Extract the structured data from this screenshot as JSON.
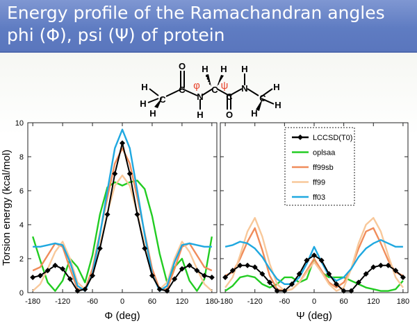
{
  "title_line1": "Energy profile of the Ramachandran angles",
  "title_line2": "phi (Φ), psi (Ψ) of protein",
  "molecule": {
    "atoms": [
      "H",
      "H",
      "H",
      "C",
      "O",
      "C",
      "N",
      "H",
      "H",
      "H",
      "C",
      "C",
      "O",
      "N",
      "H",
      "H",
      "H",
      "H",
      "C"
    ],
    "phi_symbol": "φ",
    "psi_symbol": "ψ"
  },
  "chart_data": [
    {
      "type": "line",
      "panel": "phi",
      "xlabel": "Φ (deg)",
      "ylabel": "Torsion energy (kcal/mol)",
      "xlim": [
        -190,
        190
      ],
      "ylim": [
        0,
        10
      ],
      "x_ticks": [
        -180,
        -120,
        -60,
        0,
        60,
        120,
        180
      ],
      "y_ticks": [
        0,
        2,
        4,
        6,
        8,
        10
      ],
      "series": [
        {
          "name": "oplsaa",
          "color": "#22cc22",
          "marker": "none",
          "x": [
            -180,
            -165,
            -150,
            -135,
            -120,
            -105,
            -90,
            -75,
            -60,
            -45,
            -30,
            -15,
            0,
            15,
            30,
            45,
            60,
            75,
            90,
            105,
            120,
            135,
            150,
            165,
            180
          ],
          "y": [
            3.3,
            1.9,
            0.6,
            0.1,
            0.7,
            2.0,
            1.5,
            0.6,
            2.2,
            4.6,
            6.2,
            6.5,
            6.3,
            6.5,
            6.6,
            6.1,
            4.5,
            2.3,
            0.6,
            1.5,
            2.0,
            0.7,
            0.1,
            0.8,
            3.3
          ]
        },
        {
          "name": "ff99sb",
          "color": "#f08c5a",
          "marker": "none",
          "x": [
            -180,
            -165,
            -150,
            -135,
            -120,
            -105,
            -90,
            -75,
            -60,
            -45,
            -30,
            -15,
            0,
            15,
            30,
            45,
            60,
            75,
            90,
            105,
            120,
            135,
            150,
            165,
            180
          ],
          "y": [
            1.3,
            1.5,
            2.2,
            2.9,
            2.7,
            1.4,
            0.2,
            0.2,
            1.4,
            3.5,
            5.6,
            7.6,
            8.5,
            7.6,
            5.6,
            3.5,
            1.4,
            0.2,
            0.2,
            1.4,
            2.7,
            2.9,
            2.2,
            1.5,
            1.3
          ]
        },
        {
          "name": "ff99",
          "color": "#f8c89a",
          "marker": "none",
          "x": [
            -180,
            -165,
            -150,
            -135,
            -120,
            -105,
            -90,
            -75,
            -60,
            -45,
            -30,
            -15,
            0,
            15,
            30,
            45,
            60,
            75,
            90,
            105,
            120,
            135,
            150,
            165,
            180
          ],
          "y": [
            0.1,
            0.5,
            1.4,
            2.4,
            3.0,
            2.0,
            0.6,
            0.2,
            1.0,
            2.8,
            4.7,
            6.3,
            6.9,
            6.3,
            4.7,
            2.8,
            1.0,
            0.2,
            0.6,
            2.0,
            3.0,
            2.4,
            1.4,
            0.5,
            0.1
          ]
        },
        {
          "name": "ff03",
          "color": "#1fa8e0",
          "marker": "none",
          "x": [
            -180,
            -165,
            -150,
            -135,
            -120,
            -105,
            -90,
            -75,
            -60,
            -45,
            -30,
            -15,
            0,
            15,
            30,
            45,
            60,
            75,
            90,
            105,
            120,
            135,
            150,
            165,
            180
          ],
          "y": [
            2.7,
            2.7,
            2.8,
            2.9,
            2.8,
            1.8,
            0.4,
            0.1,
            1.1,
            3.4,
            6.0,
            8.5,
            9.6,
            8.5,
            6.0,
            3.4,
            1.1,
            0.1,
            0.4,
            1.8,
            2.8,
            2.9,
            2.8,
            2.7,
            2.7
          ]
        },
        {
          "name": "LCCSD(T0)",
          "color": "#000000",
          "marker": "diamond",
          "x": [
            -180,
            -165,
            -150,
            -135,
            -120,
            -105,
            -90,
            -75,
            -60,
            -45,
            -30,
            -15,
            0,
            15,
            30,
            45,
            60,
            75,
            90,
            105,
            120,
            135,
            150,
            165,
            180
          ],
          "y": [
            0.9,
            1.0,
            1.3,
            1.6,
            1.4,
            0.8,
            0.1,
            0.2,
            1.0,
            2.6,
            4.6,
            7.0,
            8.8,
            7.0,
            4.6,
            2.6,
            1.0,
            0.2,
            0.1,
            0.8,
            1.4,
            1.6,
            1.3,
            1.0,
            0.9
          ]
        }
      ]
    },
    {
      "type": "line",
      "panel": "psi",
      "xlabel": "Ψ (deg)",
      "xlim": [
        -190,
        190
      ],
      "ylim": [
        0,
        10
      ],
      "x_ticks": [
        -180,
        -120,
        -60,
        0,
        60,
        120,
        180
      ],
      "legend": "top-right",
      "series": [
        {
          "name": "oplsaa",
          "color": "#22cc22",
          "marker": "none",
          "x": [
            -180,
            -165,
            -150,
            -135,
            -120,
            -105,
            -90,
            -75,
            -60,
            -45,
            -30,
            -15,
            0,
            15,
            30,
            45,
            60,
            75,
            90,
            105,
            120,
            135,
            150,
            165,
            180
          ],
          "y": [
            0.1,
            0.4,
            0.9,
            1.0,
            0.9,
            0.5,
            0.3,
            0.5,
            0.9,
            0.9,
            0.6,
            0.8,
            2.0,
            1.2,
            0.9,
            0.9,
            0.9,
            0.7,
            0.5,
            0.3,
            0.2,
            0.1,
            0.1,
            0.2,
            0.7
          ]
        },
        {
          "name": "ff99sb",
          "color": "#f08c5a",
          "marker": "none",
          "x": [
            -180,
            -165,
            -150,
            -135,
            -120,
            -105,
            -90,
            -75,
            -60,
            -45,
            -30,
            -15,
            0,
            15,
            30,
            45,
            60,
            75,
            90,
            105,
            120,
            135,
            150,
            165,
            180
          ],
          "y": [
            1.0,
            1.2,
            2.0,
            3.0,
            3.8,
            2.5,
            1.0,
            0.2,
            0.1,
            0.2,
            0.6,
            1.3,
            2.0,
            1.3,
            0.6,
            0.3,
            0.6,
            1.4,
            2.6,
            3.6,
            3.8,
            2.9,
            1.9,
            1.2,
            1.0
          ]
        },
        {
          "name": "ff99",
          "color": "#f8c89a",
          "marker": "none",
          "x": [
            -180,
            -165,
            -150,
            -135,
            -120,
            -105,
            -90,
            -75,
            -60,
            -45,
            -30,
            -15,
            0,
            15,
            30,
            45,
            60,
            75,
            90,
            105,
            120,
            135,
            150,
            165,
            180
          ],
          "y": [
            0.3,
            0.9,
            2.2,
            3.6,
            4.4,
            3.3,
            1.7,
            0.5,
            0.1,
            0.2,
            0.6,
            1.2,
            1.8,
            1.2,
            0.5,
            0.1,
            0.3,
            1.4,
            2.9,
            4.0,
            4.4,
            3.6,
            2.2,
            0.9,
            0.3
          ]
        },
        {
          "name": "ff03",
          "color": "#1fa8e0",
          "marker": "none",
          "x": [
            -180,
            -165,
            -150,
            -135,
            -120,
            -105,
            -90,
            -75,
            -60,
            -45,
            -30,
            -15,
            0,
            15,
            30,
            45,
            60,
            75,
            90,
            105,
            120,
            135,
            150,
            165,
            180
          ],
          "y": [
            2.7,
            2.8,
            3.0,
            2.9,
            2.6,
            2.1,
            1.4,
            0.8,
            0.5,
            0.5,
            0.9,
            1.7,
            2.7,
            1.8,
            1.0,
            0.7,
            0.9,
            1.4,
            2.1,
            2.6,
            2.9,
            3.1,
            2.9,
            2.7,
            2.7
          ]
        },
        {
          "name": "LCCSD(T0)",
          "color": "#000000",
          "marker": "diamond",
          "x": [
            -180,
            -165,
            -150,
            -135,
            -120,
            -105,
            -90,
            -75,
            -60,
            -45,
            -30,
            -15,
            0,
            15,
            30,
            45,
            60,
            75,
            90,
            105,
            120,
            135,
            150,
            165,
            180
          ],
          "y": [
            0.9,
            1.3,
            1.6,
            1.6,
            1.5,
            1.1,
            0.6,
            0.1,
            0.1,
            0.5,
            1.1,
            1.9,
            2.2,
            1.9,
            1.1,
            0.5,
            0.1,
            0.1,
            0.6,
            1.1,
            1.5,
            1.6,
            1.6,
            1.3,
            0.9
          ]
        }
      ]
    }
  ]
}
